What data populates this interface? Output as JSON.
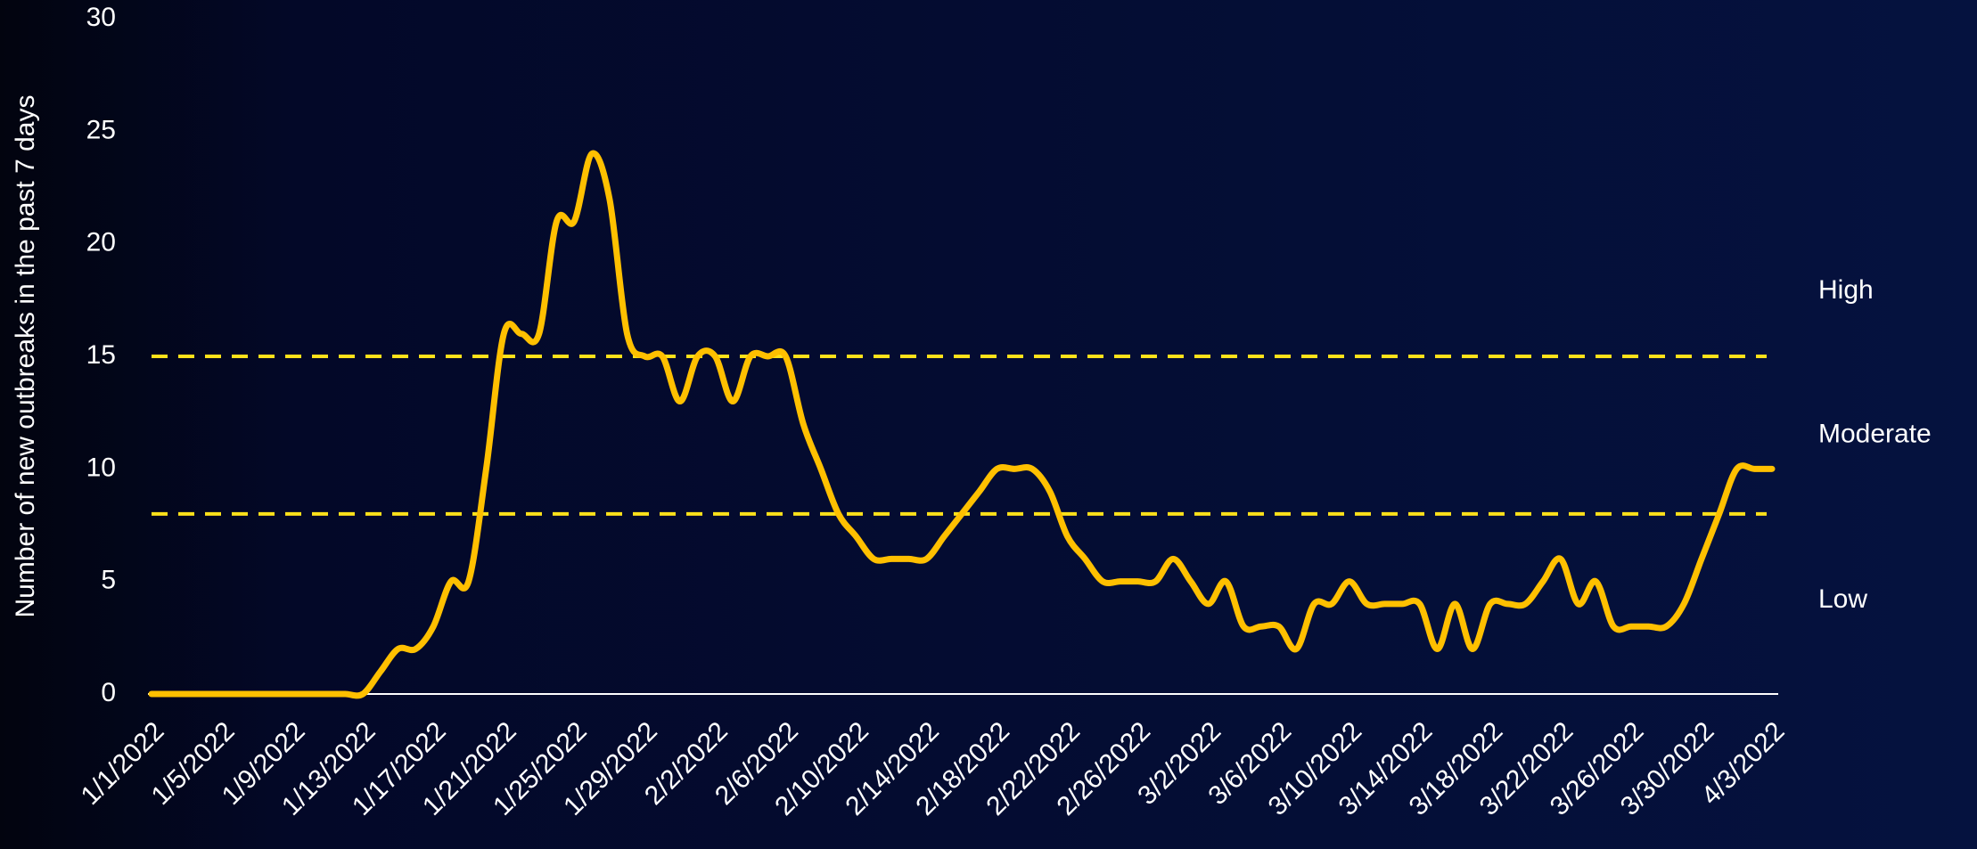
{
  "chart_data": {
    "type": "line",
    "y_label": "Number of new outbreaks in the past 7 days",
    "categories": [
      "1/1/2022",
      null,
      null,
      null,
      "1/5/2022",
      null,
      null,
      null,
      "1/9/2022",
      null,
      null,
      null,
      "1/13/2022",
      null,
      null,
      null,
      "1/17/2022",
      null,
      null,
      null,
      "1/21/2022",
      null,
      null,
      null,
      "1/25/2022",
      null,
      null,
      null,
      "1/29/2022",
      null,
      null,
      null,
      "2/2/2022",
      null,
      null,
      null,
      "2/6/2022",
      null,
      null,
      null,
      "2/10/2022",
      null,
      null,
      null,
      "2/14/2022",
      null,
      null,
      null,
      "2/18/2022",
      null,
      null,
      null,
      "2/22/2022",
      null,
      null,
      null,
      "2/26/2022",
      null,
      null,
      null,
      "3/2/2022",
      null,
      null,
      null,
      "3/6/2022",
      null,
      null,
      null,
      "3/10/2022",
      null,
      null,
      null,
      "3/14/2022",
      null,
      null,
      null,
      "3/18/2022",
      null,
      null,
      null,
      "3/22/2022",
      null,
      null,
      null,
      "3/26/2022",
      null,
      null,
      null,
      "3/30/2022",
      null,
      null,
      null,
      "4/3/2022"
    ],
    "series": [
      {
        "color": "#FFC000",
        "values": [
          0,
          0,
          0,
          0,
          0,
          0,
          0,
          0,
          0,
          0,
          0,
          0,
          0,
          1,
          2,
          2,
          3,
          5,
          5,
          10,
          16,
          16,
          16,
          21,
          21,
          24,
          22,
          16,
          15,
          15,
          13,
          15,
          15,
          13,
          15,
          15,
          15,
          12,
          10,
          8,
          7,
          6,
          6,
          6,
          6,
          7,
          8,
          9,
          10,
          10,
          10,
          9,
          7,
          6,
          5,
          5,
          5,
          5,
          6,
          5,
          4,
          5,
          3,
          3,
          3,
          2,
          4,
          4,
          5,
          4,
          4,
          4,
          4,
          2,
          4,
          2,
          4,
          4,
          4,
          5,
          6,
          4,
          5,
          3,
          3,
          3,
          3,
          4,
          6,
          8,
          10,
          10,
          10
        ]
      }
    ],
    "ylim": [
      0,
      30
    ],
    "yticks": [
      0,
      5,
      10,
      15,
      20,
      25,
      30
    ],
    "thresholds": [
      15,
      8
    ],
    "threshold_color": "#FFE11A",
    "zones": [
      "High",
      "Moderate",
      "Low"
    ]
  }
}
